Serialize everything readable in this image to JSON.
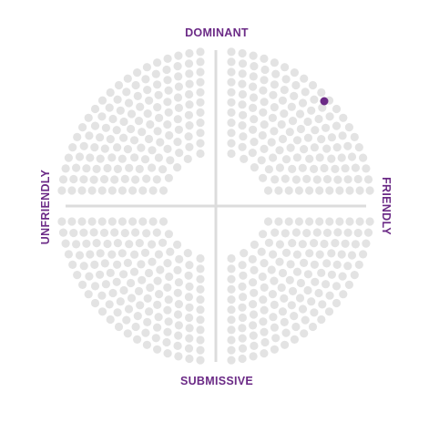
{
  "labels": {
    "top": "DOMINANT",
    "bottom": "SUBMISSIVE",
    "left": "UNFRIENDLY",
    "right": "FRIENDLY"
  },
  "colors": {
    "dot": "#e3e3e3",
    "axis": "#dcdcdc",
    "accent": "#6b2a86",
    "label": "#6b2a86"
  },
  "selection": {
    "quadrant": "dominant-friendly",
    "ring": 2,
    "position": "outer upper-right"
  }
}
